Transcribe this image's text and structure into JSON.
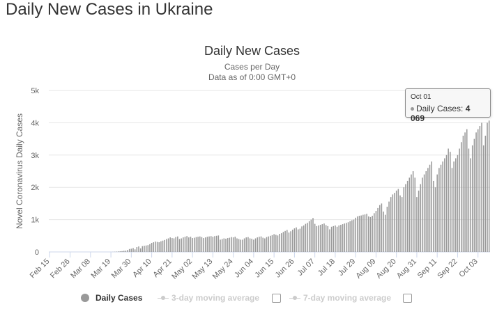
{
  "page": {
    "title": "Daily New Cases in Ukraine"
  },
  "chart_data": {
    "type": "bar",
    "title": "Daily New Cases",
    "subtitle": "Cases per Day",
    "subtitle2": "Data as of 0:00 GMT+0",
    "ylabel": "Novel Coronavirus Daily Cases",
    "xlabel": "",
    "ylim": [
      0,
      5000
    ],
    "y_ticks": [
      "0",
      "1k",
      "2k",
      "3k",
      "4k",
      "5k"
    ],
    "grid": true,
    "x_start": "Feb 15",
    "x_ticks": [
      "Feb 15",
      "Feb 26",
      "Mar 08",
      "Mar 19",
      "Mar 30",
      "Apr 10",
      "Apr 21",
      "May 02",
      "May 13",
      "May 24",
      "Jun 04",
      "Jun 15",
      "Jun 26",
      "Jul 07",
      "Jul 18",
      "Jul 29",
      "Aug 09",
      "Aug 20",
      "Aug 31",
      "Sep 11",
      "Sep 22",
      "Oct 03"
    ],
    "series": [
      {
        "name": "Daily Cases",
        "color": "#999999",
        "values": [
          0,
          0,
          0,
          0,
          0,
          0,
          0,
          0,
          0,
          0,
          0,
          0,
          0,
          0,
          0,
          0,
          0,
          0,
          0,
          0,
          0,
          0,
          0,
          0,
          0,
          0,
          0,
          0,
          0,
          0,
          0,
          0,
          0,
          1,
          2,
          5,
          10,
          15,
          20,
          25,
          35,
          40,
          60,
          90,
          100,
          120,
          80,
          150,
          170,
          110,
          180,
          190,
          200,
          210,
          240,
          280,
          300,
          320,
          310,
          300,
          330,
          350,
          370,
          400,
          420,
          450,
          430,
          420,
          460,
          480,
          400,
          420,
          450,
          470,
          490,
          450,
          470,
          430,
          440,
          460,
          470,
          480,
          460,
          430,
          450,
          470,
          480,
          490,
          470,
          490,
          500,
          510,
          380,
          400,
          420,
          410,
          430,
          440,
          460,
          450,
          470,
          420,
          400,
          380,
          380,
          420,
          450,
          460,
          420,
          410,
          380,
          420,
          450,
          470,
          480,
          440,
          420,
          460,
          480,
          500,
          520,
          550,
          530,
          510,
          560,
          580,
          620,
          650,
          680,
          600,
          640,
          690,
          730,
          760,
          700,
          720,
          790,
          820,
          870,
          900,
          950,
          1000,
          1050,
          870,
          800,
          820,
          840,
          860,
          880,
          830,
          800,
          700,
          780,
          800,
          820,
          780,
          820,
          840,
          860,
          880,
          900,
          920,
          950,
          980,
          1000,
          1060,
          1100,
          1120,
          1130,
          1150,
          1160,
          1180,
          1100,
          1080,
          1120,
          1200,
          1270,
          1360,
          1450,
          1500,
          1250,
          1150,
          1400,
          1560,
          1700,
          1780,
          1830,
          1900,
          1950,
          1750,
          1700,
          2000,
          2100,
          2200,
          2300,
          2400,
          2500,
          2300,
          1700,
          1900,
          2100,
          2300,
          2400,
          2500,
          2600,
          2700,
          2800,
          2200,
          2000,
          2400,
          2600,
          2700,
          2800,
          2900,
          3000,
          3200,
          3100,
          2600,
          2800,
          2900,
          3000,
          3200,
          3400,
          3600,
          3700,
          3800,
          3200,
          2900,
          3300,
          3500,
          3700,
          3800,
          3900,
          4000,
          3300,
          3600,
          4000,
          4069
        ]
      }
    ],
    "tooltip": {
      "date": "Oct 01",
      "series": "Daily Cases",
      "value": "4 069"
    }
  },
  "legend": {
    "items": [
      {
        "label": "Daily Cases",
        "active": true
      },
      {
        "label": "3-day moving average",
        "active": false
      },
      {
        "label": "7-day moving average",
        "active": false
      }
    ]
  }
}
